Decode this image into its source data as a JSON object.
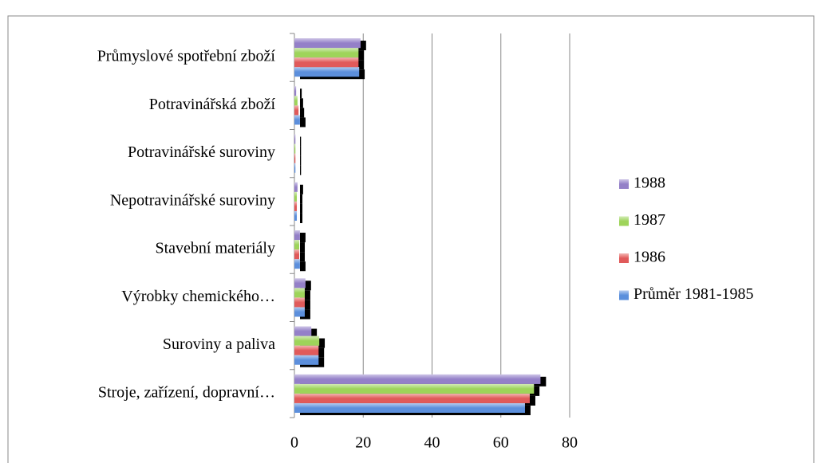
{
  "chart_data": {
    "type": "hbar",
    "categories": [
      "Stroje, zařízení, dopravní…",
      "Suroviny a paliva",
      "Výrobky chemického…",
      "Stavební materiály",
      "Nepotravinářské suroviny",
      "Potravinářské suroviny",
      "Potravinářská zboží",
      "Průmyslové spotřební zboží"
    ],
    "series": [
      {
        "name": "Průměr 1981-1985",
        "color": "#5b8fdc",
        "values": [
          67,
          7,
          3,
          1.6,
          0.7,
          0.3,
          1.6,
          18.8
        ]
      },
      {
        "name": "1986",
        "color": "#e05a5a",
        "values": [
          68.4,
          7,
          3,
          1.4,
          0.7,
          0.3,
          1.2,
          18.6
        ]
      },
      {
        "name": "1987",
        "color": "#9ed45a",
        "values": [
          69.6,
          7.2,
          3,
          1.4,
          0.7,
          0.3,
          0.9,
          18.6
        ]
      },
      {
        "name": "1988",
        "color": "#9480c8",
        "values": [
          71.5,
          4.9,
          3.2,
          1.6,
          0.9,
          0.3,
          0.5,
          19.2
        ]
      }
    ],
    "xlim": [
      0,
      80
    ],
    "xticks": [
      0,
      20,
      40,
      60,
      80
    ],
    "grid": true,
    "legend": "right"
  }
}
